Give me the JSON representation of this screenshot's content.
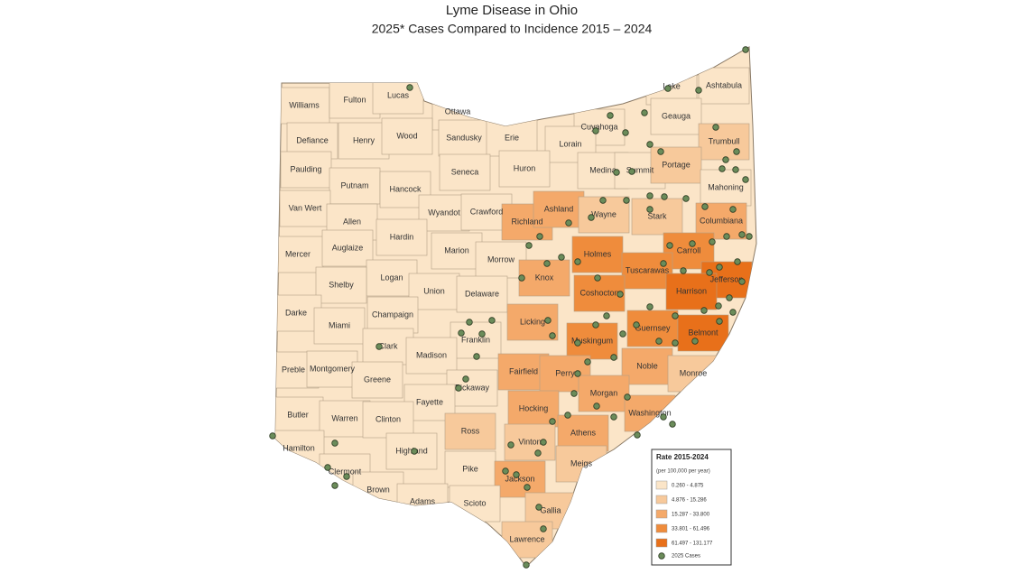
{
  "title": "Lyme Disease in Ohio",
  "subtitle": "2025* Cases Compared to Incidence 2015 – 2024",
  "counties": [
    {
      "name": "Williams",
      "color": "#fbe5c8"
    },
    {
      "name": "Fulton",
      "color": "#fbe5c8"
    },
    {
      "name": "Lucas",
      "color": "#fbe5c8"
    },
    {
      "name": "Ottawa",
      "color": "#fbe5c8"
    },
    {
      "name": "Defiance",
      "color": "#fbe5c8"
    },
    {
      "name": "Henry",
      "color": "#fbe5c8"
    },
    {
      "name": "Wood",
      "color": "#fbe5c8"
    },
    {
      "name": "Sandusky",
      "color": "#fbe5c8"
    },
    {
      "name": "Erie",
      "color": "#fbe5c8"
    },
    {
      "name": "Cuyahoga",
      "color": "#fbe5c8"
    },
    {
      "name": "Lake",
      "color": "#fbe5c8"
    },
    {
      "name": "Ashtabula",
      "color": "#fbe5c8"
    },
    {
      "name": "Geauga",
      "color": "#fbe5c8"
    },
    {
      "name": "Trumbull",
      "color": "#f7c99b"
    },
    {
      "name": "Lorain",
      "color": "#fbe5c8"
    },
    {
      "name": "Paulding",
      "color": "#fbe5c8"
    },
    {
      "name": "Putnam",
      "color": "#fbe5c8"
    },
    {
      "name": "Hancock",
      "color": "#fbe5c8"
    },
    {
      "name": "Seneca",
      "color": "#fbe5c8"
    },
    {
      "name": "Huron",
      "color": "#fbe5c8"
    },
    {
      "name": "Medina",
      "color": "#fbe5c8"
    },
    {
      "name": "Summit",
      "color": "#fbe5c8"
    },
    {
      "name": "Portage",
      "color": "#f7c99b"
    },
    {
      "name": "Mahoning",
      "color": "#fbe5c8"
    },
    {
      "name": "Van Wert",
      "color": "#fbe5c8"
    },
    {
      "name": "Allen",
      "color": "#fbe5c8"
    },
    {
      "name": "Wyandot",
      "color": "#fbe5c8"
    },
    {
      "name": "Crawford",
      "color": "#fbe5c8"
    },
    {
      "name": "Richland",
      "color": "#f4a96a"
    },
    {
      "name": "Ashland",
      "color": "#f4a96a"
    },
    {
      "name": "Wayne",
      "color": "#f7c99b"
    },
    {
      "name": "Stark",
      "color": "#f7c99b"
    },
    {
      "name": "Columbiana",
      "color": "#f4a96a"
    },
    {
      "name": "Mercer",
      "color": "#fbe5c8"
    },
    {
      "name": "Auglaize",
      "color": "#fbe5c8"
    },
    {
      "name": "Hardin",
      "color": "#fbe5c8"
    },
    {
      "name": "Marion",
      "color": "#fbe5c8"
    },
    {
      "name": "Morrow",
      "color": "#fbe5c8"
    },
    {
      "name": "Holmes",
      "color": "#ef8c3c"
    },
    {
      "name": "Carroll",
      "color": "#ef8c3c"
    },
    {
      "name": "Logan",
      "color": "#fbe5c8"
    },
    {
      "name": "Shelby",
      "color": "#fbe5c8"
    },
    {
      "name": "Union",
      "color": "#fbe5c8"
    },
    {
      "name": "Knox",
      "color": "#f4a96a"
    },
    {
      "name": "Tuscarawas",
      "color": "#ef8c3c"
    },
    {
      "name": "Jefferson",
      "color": "#e8701a"
    },
    {
      "name": "Delaware",
      "color": "#fbe5c8"
    },
    {
      "name": "Coshocton",
      "color": "#ef8c3c"
    },
    {
      "name": "Harrison",
      "color": "#e8701a"
    },
    {
      "name": "Darke",
      "color": "#fbe5c8"
    },
    {
      "name": "Champaign",
      "color": "#fbe5c8"
    },
    {
      "name": "Miami",
      "color": "#fbe5c8"
    },
    {
      "name": "Licking",
      "color": "#f4a96a"
    },
    {
      "name": "Guernsey",
      "color": "#ef8c3c"
    },
    {
      "name": "Belmont",
      "color": "#e8701a"
    },
    {
      "name": "Clark",
      "color": "#fbe5c8"
    },
    {
      "name": "Franklin",
      "color": "#fbe5c8"
    },
    {
      "name": "Muskingum",
      "color": "#ef8c3c"
    },
    {
      "name": "Madison",
      "color": "#fbe5c8"
    },
    {
      "name": "Preble",
      "color": "#fbe5c8"
    },
    {
      "name": "Montgomery",
      "color": "#fbe5c8"
    },
    {
      "name": "Greene",
      "color": "#fbe5c8"
    },
    {
      "name": "Fairfield",
      "color": "#f4a96a"
    },
    {
      "name": "Perry",
      "color": "#f4a96a"
    },
    {
      "name": "Noble",
      "color": "#f4a96a"
    },
    {
      "name": "Monroe",
      "color": "#f7c99b"
    },
    {
      "name": "Pickaway",
      "color": "#fbe5c8"
    },
    {
      "name": "Fayette",
      "color": "#fbe5c8"
    },
    {
      "name": "Morgan",
      "color": "#f4a96a"
    },
    {
      "name": "Butler",
      "color": "#fbe5c8"
    },
    {
      "name": "Warren",
      "color": "#fbe5c8"
    },
    {
      "name": "Clinton",
      "color": "#fbe5c8"
    },
    {
      "name": "Hocking",
      "color": "#f4a96a"
    },
    {
      "name": "Washington",
      "color": "#f4a96a"
    },
    {
      "name": "Ross",
      "color": "#f7c99b"
    },
    {
      "name": "Vinton",
      "color": "#f7c99b"
    },
    {
      "name": "Athens",
      "color": "#f4a96a"
    },
    {
      "name": "Hamilton",
      "color": "#fbe5c8"
    },
    {
      "name": "Highland",
      "color": "#fbe5c8"
    },
    {
      "name": "Pike",
      "color": "#fbe5c8"
    },
    {
      "name": "Meigs",
      "color": "#f7c99b"
    },
    {
      "name": "Clermont",
      "color": "#fbe5c8"
    },
    {
      "name": "Jackson",
      "color": "#f4a96a"
    },
    {
      "name": "Brown",
      "color": "#fbe5c8"
    },
    {
      "name": "Adams",
      "color": "#fbe5c8"
    },
    {
      "name": "Scioto",
      "color": "#fbe5c8"
    },
    {
      "name": "Gallia",
      "color": "#f7c99b"
    },
    {
      "name": "Lawrence",
      "color": "#f7c99b"
    }
  ],
  "legend": {
    "title": "Rate 2015-2024",
    "subtitle": "(per 100,000 per year)",
    "classes": [
      {
        "label": "0.260 - 4.875",
        "color": "#fbe5c8"
      },
      {
        "label": "4.876 - 15.286",
        "color": "#f7c99b"
      },
      {
        "label": "15.287 - 33.800",
        "color": "#f4a96a"
      },
      {
        "label": "33.801 - 61.496",
        "color": "#ef8c3c"
      },
      {
        "label": "61.497 - 131.177",
        "color": "#e8701a"
      }
    ],
    "points_label": "2025 Cases",
    "point_color": "#6b8c5a"
  }
}
